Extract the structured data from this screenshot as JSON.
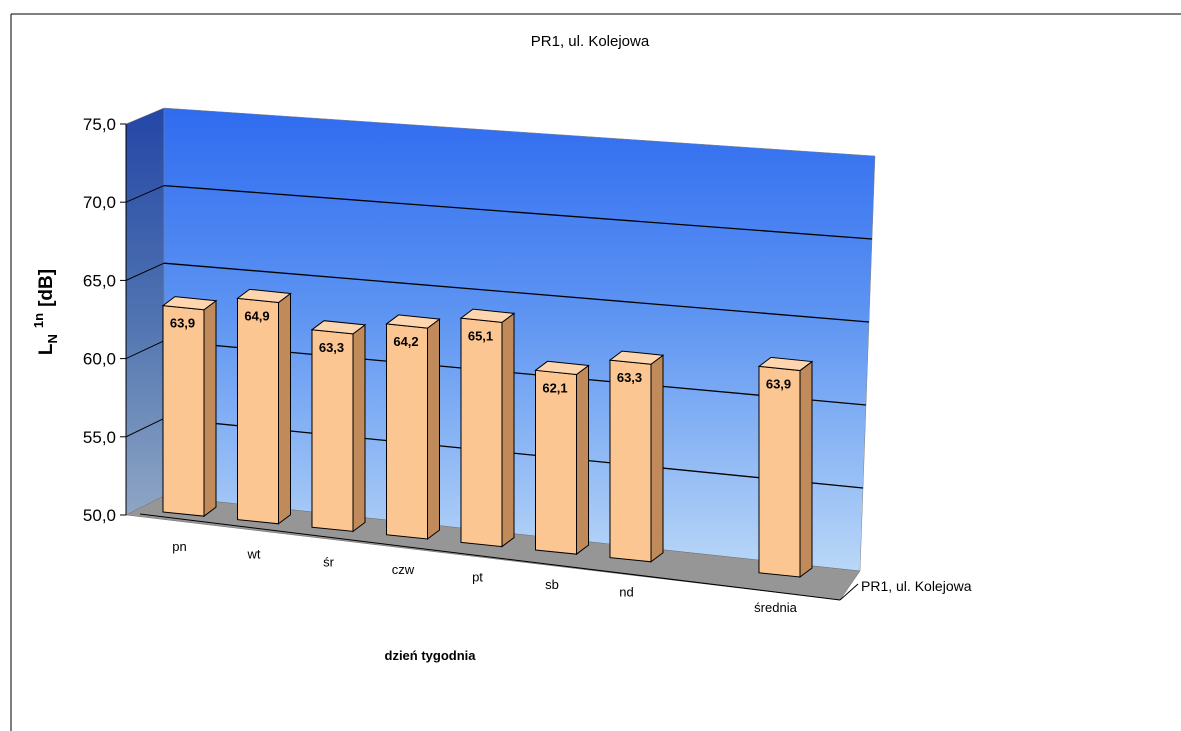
{
  "chart_data": {
    "type": "bar",
    "title": "PR1, ul. Kolejowa",
    "xlabel": "dzień tygodnia",
    "ylabel_main": "L",
    "ylabel_sub": "N",
    "ylabel_sup": "1n",
    "ylabel_unit": "[dB]",
    "categories": [
      "pn",
      "wt",
      "śr",
      "czw",
      "pt",
      "sb",
      "nd",
      "średnia"
    ],
    "value_labels": [
      "63,9",
      "64,9",
      "63,3",
      "64,2",
      "65,1",
      "62,1",
      "63,3",
      "63,9"
    ],
    "series": [
      {
        "name": "PR1, ul. Kolejowa",
        "values": [
          63.9,
          64.9,
          63.3,
          64.2,
          65.1,
          62.1,
          63.3,
          63.9
        ]
      }
    ],
    "ylim": [
      50,
      75
    ],
    "yticks": [
      "50,0",
      "55,0",
      "60,0",
      "65,0",
      "70,0",
      "75,0"
    ],
    "grid": true,
    "colors": {
      "bar_front": "#FCC692",
      "bar_top": "#FDD6B0",
      "bar_side": "#C08A5A",
      "back_wall_top": "#2F6BF0",
      "back_wall_bottom": "#B9D7F7",
      "floor": "#969696",
      "grid": "#000000"
    }
  }
}
